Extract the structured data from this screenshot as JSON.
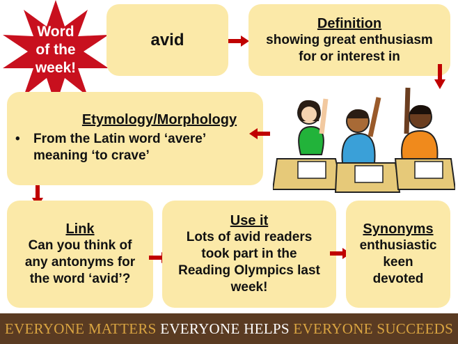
{
  "badge": {
    "text_lines": [
      "Word",
      "of the",
      "week!"
    ],
    "color": "#c8101e"
  },
  "word_box": {
    "word": "avid"
  },
  "definition": {
    "title": "Definition",
    "lines": [
      "showing great enthusiasm",
      "for or interest in"
    ]
  },
  "etymology": {
    "title": "Etymology/Morphology",
    "bullet_lines": [
      "From the Latin word ‘avere’",
      "meaning ‘to crave’"
    ]
  },
  "link": {
    "title": "Link",
    "lines": [
      "Can you think of",
      "any antonyms for",
      "the word ‘avid’?"
    ]
  },
  "use_it": {
    "title": "Use it",
    "lines": [
      "Lots of avid readers",
      "took part in the",
      "Reading Olympics last",
      "week!"
    ]
  },
  "synonyms": {
    "title": "Synonyms",
    "lines": [
      "enthusiastic",
      "keen",
      "devoted"
    ]
  },
  "footer": {
    "segments": [
      "EVERYONE MATTERS",
      "EVERYONE HELPS",
      "EVERYONE SUCCEEDS"
    ],
    "colors": [
      "#d9a441",
      "#ffffff",
      "#d9a441"
    ]
  },
  "colors": {
    "box_fill": "#fbe9a8",
    "arrow": "#c00000",
    "footer_bg": "#5a3b22"
  }
}
